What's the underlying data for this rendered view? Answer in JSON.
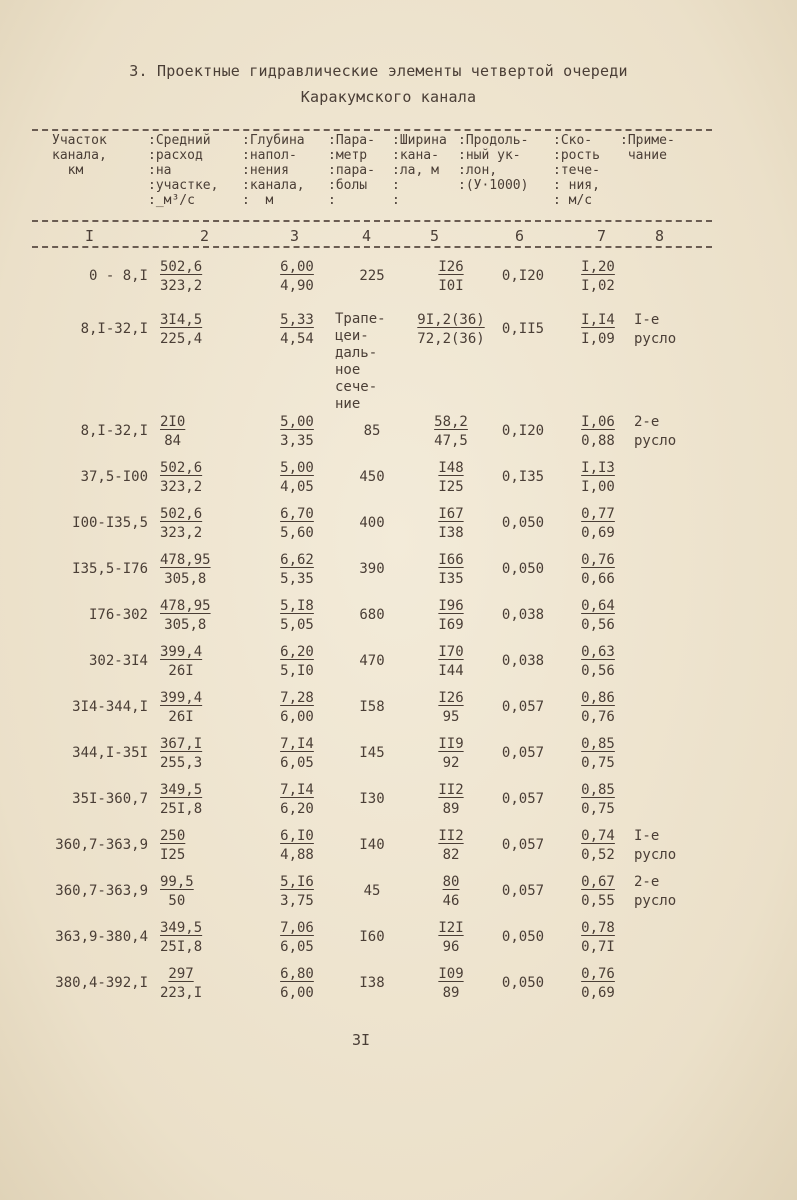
{
  "title": {
    "line1": "3. Проектные гидравлические элементы четвертой очереди",
    "line2": "Каракумского канала"
  },
  "header": {
    "columns": [
      "Участок\nканала,\n  км",
      ":Средний\n:расход\n:на\n:участке,\n:_м³/с",
      ":Глубина\n:напол-\n:нения\n:канала,\n:  м",
      ":Пара-\n:метр\n:пара-\n:болы\n:",
      ":Ширина\n:кана-\n:ла, м\n:\n:",
      ":Продоль-\n:ный ук-\n:лон,\n:(У·1000)",
      ":Ско-\n:рость\n:тече-\n: ния,\n: м/с",
      ":Приме-\n чание"
    ],
    "numbers": [
      "I",
      "2",
      "3",
      "4",
      "5",
      "6",
      "7",
      "8"
    ]
  },
  "rows": [
    {
      "section": "0 - 8,I",
      "q": [
        "502,6",
        "323,2"
      ],
      "h": [
        "6,00",
        "4,90"
      ],
      "p": "225",
      "b": [
        "I26",
        "I0I"
      ],
      "i": "0,I20",
      "v": [
        "I,20",
        "I,02"
      ],
      "note": ""
    },
    {
      "section": "8,I-32,I",
      "q": [
        "3I4,5",
        "225,4"
      ],
      "h": [
        "5,33",
        "4,54"
      ],
      "p": "Трапе-\nцеи-\nдаль-\nное\nсече-\nние",
      "b": [
        "9I,2(36)",
        "72,2(36)"
      ],
      "i": "0,II5",
      "v": [
        "I,I4",
        "I,09"
      ],
      "note": "I-е\nрусло"
    },
    {
      "section": "8,I-32,I",
      "q": [
        "2I0",
        "84"
      ],
      "h": [
        "5,00",
        "3,35"
      ],
      "p": "85",
      "b": [
        "58,2",
        "47,5"
      ],
      "i": "0,I20",
      "v": [
        "I,06",
        "0,88"
      ],
      "note": "2-е\nрусло"
    },
    {
      "section": "37,5-I00",
      "q": [
        "502,6",
        "323,2"
      ],
      "h": [
        "5,00",
        "4,05"
      ],
      "p": "450",
      "b": [
        "I48",
        "I25"
      ],
      "i": "0,I35",
      "v": [
        "I,I3",
        "I,00"
      ],
      "note": ""
    },
    {
      "section": "I00-I35,5",
      "q": [
        "502,6",
        "323,2"
      ],
      "h": [
        "6,70",
        "5,60"
      ],
      "p": "400",
      "b": [
        "I67",
        "I38"
      ],
      "i": "0,050",
      "v": [
        "0,77",
        "0,69"
      ],
      "note": ""
    },
    {
      "section": "I35,5-I76",
      "q": [
        "478,95",
        "305,8"
      ],
      "h": [
        "6,62",
        "5,35"
      ],
      "p": "390",
      "b": [
        "I66",
        "I35"
      ],
      "i": "0,050",
      "v": [
        "0,76",
        "0,66"
      ],
      "note": ""
    },
    {
      "section": "I76-302",
      "q": [
        "478,95",
        "305,8"
      ],
      "h": [
        "5,I8",
        "5,05"
      ],
      "p": "680",
      "b": [
        "I96",
        "I69"
      ],
      "i": "0,038",
      "v": [
        "0,64",
        "0,56"
      ],
      "note": ""
    },
    {
      "section": "302-3I4",
      "q": [
        "399,4",
        "26I"
      ],
      "h": [
        "6,20",
        "5,I0"
      ],
      "p": "470",
      "b": [
        "I70",
        "I44"
      ],
      "i": "0,038",
      "v": [
        "0,63",
        "0,56"
      ],
      "note": ""
    },
    {
      "section": "3I4-344,I",
      "q": [
        "399,4",
        "26I"
      ],
      "h": [
        "7,28",
        "6,00"
      ],
      "p": "I58",
      "b": [
        "I26",
        "95"
      ],
      "i": "0,057",
      "v": [
        "0,86",
        "0,76"
      ],
      "note": ""
    },
    {
      "section": "344,I-35I",
      "q": [
        "367,I",
        "255,3"
      ],
      "h": [
        "7,I4",
        "6,05"
      ],
      "p": "I45",
      "b": [
        "II9",
        "92"
      ],
      "i": "0,057",
      "v": [
        "0,85",
        "0,75"
      ],
      "note": ""
    },
    {
      "section": "35I-360,7",
      "q": [
        "349,5",
        "25I,8"
      ],
      "h": [
        "7,I4",
        "6,20"
      ],
      "p": "I30",
      "b": [
        "II2",
        "89"
      ],
      "i": "0,057",
      "v": [
        "0,85",
        "0,75"
      ],
      "note": ""
    },
    {
      "section": "360,7-363,9",
      "q": [
        "250",
        "I25"
      ],
      "h": [
        "6,I0",
        "4,88"
      ],
      "p": "I40",
      "b": [
        "II2",
        "82"
      ],
      "i": "0,057",
      "v": [
        "0,74",
        "0,52"
      ],
      "note": "I-е\nрусло"
    },
    {
      "section": "360,7-363,9",
      "q": [
        "99,5",
        "50"
      ],
      "h": [
        "5,I6",
        "3,75"
      ],
      "p": "45",
      "b": [
        "80",
        "46"
      ],
      "i": "0,057",
      "v": [
        "0,67",
        "0,55"
      ],
      "note": "2-е\nрусло"
    },
    {
      "section": "363,9-380,4",
      "q": [
        "349,5",
        "25I,8"
      ],
      "h": [
        "7,06",
        "6,05"
      ],
      "p": "I60",
      "b": [
        "I2I",
        "96"
      ],
      "i": "0,050",
      "v": [
        "0,78",
        "0,7I"
      ],
      "note": ""
    },
    {
      "section": "380,4-392,I",
      "q": [
        "297",
        "223,I"
      ],
      "h": [
        "6,80",
        "6,00"
      ],
      "p": "I38",
      "b": [
        "I09",
        "89"
      ],
      "i": "0,050",
      "v": [
        "0,76",
        "0,69"
      ],
      "note": ""
    }
  ],
  "page_number": "3I"
}
